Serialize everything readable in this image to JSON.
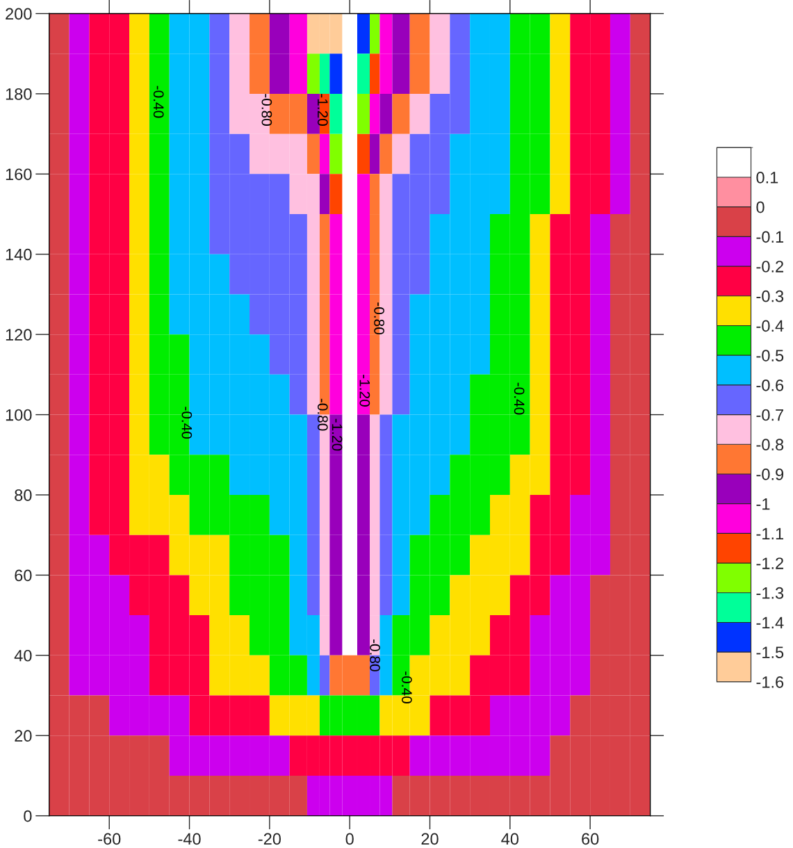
{
  "chart_data": {
    "type": "heatmap",
    "x": [
      -72.5,
      -67.5,
      -62.5,
      -57.5,
      -52.5,
      -47.5,
      -42.5,
      -37.5,
      -32.5,
      -27.5,
      -22.5,
      -17.5,
      -12.5,
      -8.75,
      -6.25,
      -3.75,
      0,
      3.75,
      6.25,
      8.75,
      12.5,
      17.5,
      22.5,
      27.5,
      32.5,
      37.5,
      42.5,
      47.5,
      52.5,
      57.5,
      62.5,
      67.5,
      72.5
    ],
    "y": [
      195,
      185,
      175,
      165,
      155,
      145,
      135,
      125,
      115,
      105,
      95,
      85,
      75,
      65,
      55,
      45,
      35,
      25,
      15,
      5
    ],
    "cells": [
      [
        -0.05,
        -0.15,
        -0.25,
        -0.25,
        -0.35,
        -0.45,
        -0.55,
        -0.55,
        -0.65,
        -0.75,
        -0.85,
        -0.95,
        -1.05,
        -1.55,
        -1.55,
        -1.55,
        null,
        -1.45,
        -1.25,
        -1.05,
        -0.95,
        -0.85,
        -0.75,
        -0.65,
        -0.55,
        -0.55,
        -0.45,
        -0.45,
        -0.35,
        -0.25,
        -0.25,
        -0.15,
        -0.05
      ],
      [
        -0.05,
        -0.15,
        -0.25,
        -0.25,
        -0.35,
        -0.45,
        -0.55,
        -0.55,
        -0.65,
        -0.75,
        -0.85,
        -0.95,
        -1.05,
        -1.25,
        -1.35,
        -1.45,
        null,
        -1.35,
        -1.15,
        -1.05,
        -0.95,
        -0.85,
        -0.75,
        -0.65,
        -0.55,
        -0.55,
        -0.45,
        -0.45,
        -0.35,
        -0.25,
        -0.25,
        -0.15,
        -0.05
      ],
      [
        -0.05,
        -0.15,
        -0.25,
        -0.25,
        -0.35,
        -0.45,
        -0.55,
        -0.55,
        -0.65,
        -0.75,
        -0.75,
        -0.85,
        -0.85,
        -0.95,
        -1.15,
        -1.35,
        null,
        -1.25,
        -1.05,
        -0.95,
        -0.85,
        -0.75,
        -0.65,
        -0.65,
        -0.55,
        -0.55,
        -0.45,
        -0.45,
        -0.35,
        -0.25,
        -0.25,
        -0.15,
        -0.05
      ],
      [
        -0.05,
        -0.15,
        -0.25,
        -0.25,
        -0.35,
        -0.45,
        -0.55,
        -0.55,
        -0.65,
        -0.65,
        -0.75,
        -0.75,
        -0.75,
        -0.85,
        -1.05,
        -1.25,
        null,
        -1.15,
        -0.95,
        -0.85,
        -0.75,
        -0.65,
        -0.65,
        -0.55,
        -0.55,
        -0.55,
        -0.45,
        -0.45,
        -0.35,
        -0.25,
        -0.25,
        -0.15,
        -0.05
      ],
      [
        -0.05,
        -0.15,
        -0.25,
        -0.25,
        -0.35,
        -0.45,
        -0.55,
        -0.55,
        -0.65,
        -0.65,
        -0.65,
        -0.65,
        -0.75,
        -0.75,
        -0.95,
        -1.15,
        null,
        -1.05,
        -0.85,
        -0.75,
        -0.65,
        -0.65,
        -0.65,
        -0.55,
        -0.55,
        -0.55,
        -0.45,
        -0.45,
        -0.35,
        -0.25,
        -0.25,
        -0.15,
        -0.05
      ],
      [
        -0.05,
        -0.15,
        -0.25,
        -0.25,
        -0.35,
        -0.45,
        -0.55,
        -0.55,
        -0.65,
        -0.65,
        -0.65,
        -0.65,
        -0.65,
        -0.75,
        -0.85,
        -1.05,
        null,
        -1.05,
        -0.85,
        -0.75,
        -0.65,
        -0.65,
        -0.55,
        -0.55,
        -0.55,
        -0.45,
        -0.45,
        -0.35,
        -0.25,
        -0.25,
        -0.15,
        -0.05,
        -0.05
      ],
      [
        -0.05,
        -0.15,
        -0.25,
        -0.25,
        -0.35,
        -0.45,
        -0.55,
        -0.55,
        -0.55,
        -0.65,
        -0.65,
        -0.65,
        -0.65,
        -0.75,
        -0.85,
        -1.05,
        null,
        -1.05,
        -0.85,
        -0.75,
        -0.65,
        -0.65,
        -0.55,
        -0.55,
        -0.55,
        -0.45,
        -0.45,
        -0.35,
        -0.25,
        -0.25,
        -0.15,
        -0.05,
        -0.05
      ],
      [
        -0.05,
        -0.15,
        -0.25,
        -0.25,
        -0.35,
        -0.45,
        -0.55,
        -0.55,
        -0.55,
        -0.55,
        -0.65,
        -0.65,
        -0.65,
        -0.75,
        -0.85,
        -1.05,
        null,
        -1.05,
        -0.85,
        -0.75,
        -0.65,
        -0.55,
        -0.55,
        -0.55,
        -0.55,
        -0.45,
        -0.45,
        -0.35,
        -0.25,
        -0.25,
        -0.15,
        -0.05,
        -0.05
      ],
      [
        -0.05,
        -0.15,
        -0.25,
        -0.25,
        -0.35,
        -0.45,
        -0.45,
        -0.55,
        -0.55,
        -0.55,
        -0.55,
        -0.65,
        -0.65,
        -0.75,
        -0.85,
        -1.05,
        null,
        -1.05,
        -0.85,
        -0.75,
        -0.65,
        -0.55,
        -0.55,
        -0.55,
        -0.55,
        -0.45,
        -0.45,
        -0.35,
        -0.25,
        -0.25,
        -0.15,
        -0.05,
        -0.05
      ],
      [
        -0.05,
        -0.15,
        -0.25,
        -0.25,
        -0.35,
        -0.45,
        -0.45,
        -0.55,
        -0.55,
        -0.55,
        -0.55,
        -0.55,
        -0.65,
        -0.75,
        -0.85,
        -1.05,
        null,
        -1.05,
        -0.85,
        -0.75,
        -0.65,
        -0.55,
        -0.55,
        -0.55,
        -0.45,
        -0.45,
        -0.45,
        -0.35,
        -0.25,
        -0.25,
        -0.15,
        -0.05,
        -0.05
      ],
      [
        -0.05,
        -0.15,
        -0.25,
        -0.25,
        -0.35,
        -0.45,
        -0.45,
        -0.55,
        -0.55,
        -0.55,
        -0.55,
        -0.55,
        -0.55,
        -0.65,
        -0.75,
        -0.95,
        null,
        -0.95,
        -0.75,
        -0.65,
        -0.55,
        -0.55,
        -0.55,
        -0.55,
        -0.45,
        -0.45,
        -0.45,
        -0.35,
        -0.25,
        -0.25,
        -0.15,
        -0.05,
        -0.05
      ],
      [
        -0.05,
        -0.15,
        -0.25,
        -0.25,
        -0.35,
        -0.35,
        -0.45,
        -0.45,
        -0.45,
        -0.55,
        -0.55,
        -0.55,
        -0.55,
        -0.65,
        -0.75,
        -0.95,
        null,
        -0.95,
        -0.75,
        -0.65,
        -0.55,
        -0.55,
        -0.55,
        -0.45,
        -0.45,
        -0.45,
        -0.35,
        -0.35,
        -0.25,
        -0.25,
        -0.15,
        -0.05,
        -0.05
      ],
      [
        -0.05,
        -0.15,
        -0.25,
        -0.25,
        -0.35,
        -0.35,
        -0.35,
        -0.45,
        -0.45,
        -0.45,
        -0.45,
        -0.55,
        -0.55,
        -0.65,
        -0.75,
        -0.95,
        null,
        -0.95,
        -0.75,
        -0.65,
        -0.55,
        -0.55,
        -0.45,
        -0.45,
        -0.45,
        -0.35,
        -0.35,
        -0.25,
        -0.25,
        -0.15,
        -0.15,
        -0.05,
        -0.05
      ],
      [
        -0.05,
        -0.15,
        -0.15,
        -0.25,
        -0.25,
        -0.25,
        -0.35,
        -0.35,
        -0.35,
        -0.45,
        -0.45,
        -0.45,
        -0.55,
        -0.65,
        -0.75,
        -0.95,
        null,
        -0.95,
        -0.75,
        -0.65,
        -0.55,
        -0.45,
        -0.45,
        -0.45,
        -0.35,
        -0.35,
        -0.35,
        -0.25,
        -0.25,
        -0.15,
        -0.15,
        -0.05,
        -0.05
      ],
      [
        -0.05,
        -0.15,
        -0.15,
        -0.15,
        -0.25,
        -0.25,
        -0.25,
        -0.35,
        -0.35,
        -0.45,
        -0.45,
        -0.45,
        -0.55,
        -0.65,
        -0.75,
        -0.95,
        null,
        -0.95,
        -0.75,
        -0.65,
        -0.55,
        -0.45,
        -0.45,
        -0.35,
        -0.35,
        -0.35,
        -0.25,
        -0.25,
        -0.15,
        -0.15,
        -0.05,
        -0.05,
        -0.05
      ],
      [
        -0.05,
        -0.15,
        -0.15,
        -0.15,
        -0.15,
        -0.25,
        -0.25,
        -0.25,
        -0.35,
        -0.35,
        -0.45,
        -0.45,
        -0.55,
        -0.55,
        -0.75,
        -0.95,
        null,
        -0.95,
        -0.75,
        -0.55,
        -0.45,
        -0.45,
        -0.35,
        -0.35,
        -0.35,
        -0.25,
        -0.25,
        -0.15,
        -0.15,
        -0.15,
        -0.05,
        -0.05,
        -0.05
      ],
      [
        -0.05,
        -0.15,
        -0.15,
        -0.15,
        -0.15,
        -0.25,
        -0.25,
        -0.25,
        -0.35,
        -0.35,
        -0.35,
        -0.45,
        -0.45,
        -0.55,
        -0.65,
        -0.85,
        -0.85,
        -0.85,
        -0.65,
        -0.55,
        -0.45,
        -0.35,
        -0.35,
        -0.35,
        -0.25,
        -0.25,
        -0.25,
        -0.15,
        -0.15,
        -0.15,
        -0.05,
        -0.05,
        -0.05
      ],
      [
        -0.05,
        -0.05,
        -0.05,
        -0.15,
        -0.15,
        -0.15,
        -0.15,
        -0.25,
        -0.25,
        -0.25,
        -0.25,
        -0.35,
        -0.35,
        -0.35,
        -0.45,
        -0.45,
        -0.45,
        -0.45,
        -0.45,
        -0.35,
        -0.35,
        -0.35,
        -0.25,
        -0.25,
        -0.25,
        -0.15,
        -0.15,
        -0.15,
        -0.15,
        -0.05,
        -0.05,
        -0.05,
        -0.05
      ],
      [
        -0.05,
        -0.05,
        -0.05,
        -0.05,
        -0.05,
        -0.05,
        -0.15,
        -0.15,
        -0.15,
        -0.15,
        -0.15,
        -0.15,
        -0.25,
        -0.25,
        -0.25,
        -0.25,
        -0.25,
        -0.25,
        -0.25,
        -0.25,
        -0.25,
        -0.15,
        -0.15,
        -0.15,
        -0.15,
        -0.15,
        -0.15,
        -0.15,
        -0.05,
        -0.05,
        -0.05,
        -0.05,
        -0.05
      ],
      [
        -0.05,
        -0.05,
        -0.05,
        -0.05,
        -0.05,
        -0.05,
        -0.05,
        -0.05,
        -0.05,
        -0.05,
        -0.05,
        -0.05,
        -0.05,
        -0.15,
        -0.15,
        -0.15,
        -0.15,
        -0.15,
        -0.15,
        -0.15,
        -0.05,
        -0.05,
        -0.05,
        -0.05,
        -0.05,
        -0.05,
        -0.05,
        -0.05,
        -0.05,
        -0.05,
        -0.05,
        -0.05,
        -0.05
      ]
    ],
    "colors": [
      "#ffcc99",
      "#0033ff",
      "#00ff99",
      "#80ff00",
      "#ff4400",
      "#ff00dd",
      "#9900bb",
      "#ff7733",
      "#ffc0e0",
      "#6666ff",
      "#00bfff",
      "#00ee00",
      "#ffe000",
      "#ff0044",
      "#cc00ee",
      "#d94148",
      "#ff8fa0",
      "#ffffff"
    ],
    "clim": [
      -1.6,
      0.2
    ],
    "cticks": [
      0.1,
      0,
      -0.1,
      -0.2,
      -0.3,
      -0.4,
      -0.5,
      -0.6,
      -0.7,
      -0.8,
      -0.9,
      -1,
      -1.1,
      -1.2,
      -1.3,
      -1.4,
      -1.5,
      -1.6
    ],
    "xlim": [
      -75,
      75
    ],
    "xticks": [
      -60,
      -40,
      -20,
      0,
      20,
      40,
      60
    ],
    "ylim": [
      0,
      200
    ],
    "yticks": [
      0,
      20,
      40,
      60,
      80,
      100,
      120,
      140,
      160,
      180,
      200
    ],
    "annotations": [
      "-0.40",
      "-0.80",
      "-1.20",
      "-0.40",
      "-0.80",
      "-1.20",
      "-1.20",
      "-0.80",
      "-0.40",
      "-0.80",
      "-0.40"
    ]
  }
}
